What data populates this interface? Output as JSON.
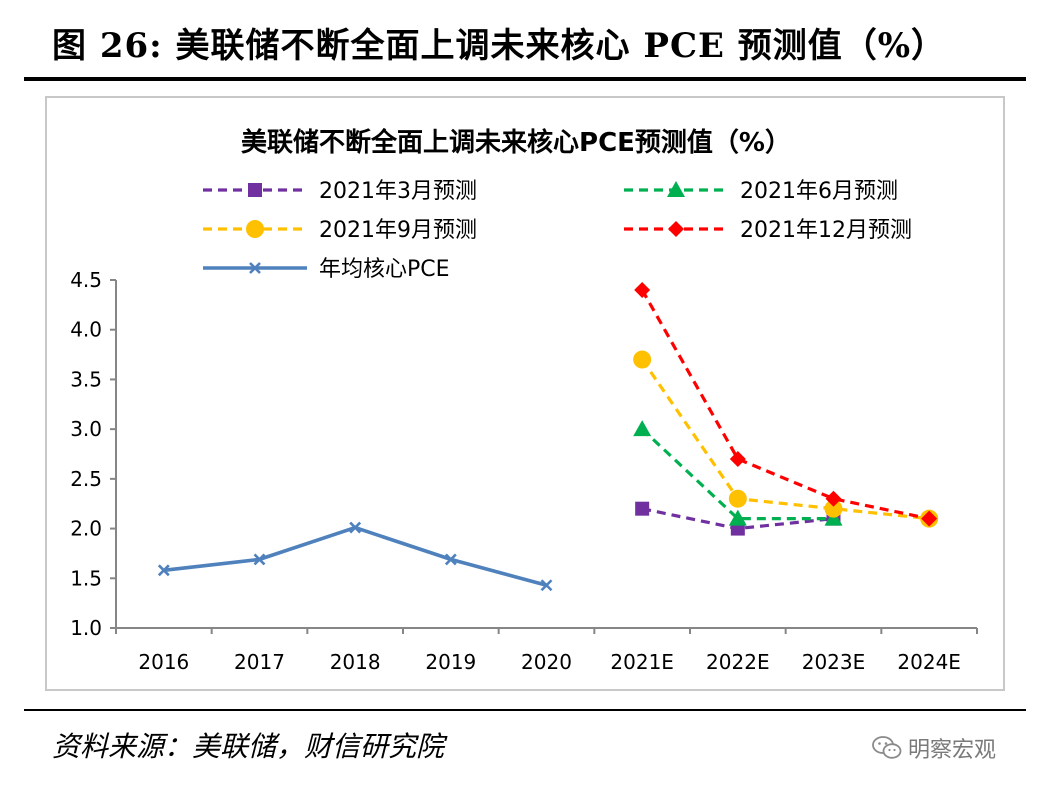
{
  "figure": {
    "title": "图 26: 美联储不断全面上调未来核心 PCE 预测值（%）",
    "source": "资料来源：美联储，财信研究院",
    "watermark": "明察宏观",
    "watermark_icon": "wechat-icon"
  },
  "chart_data": {
    "type": "line",
    "title": "美联储不断全面上调未来核心PCE预测值（%）",
    "xlabel": "",
    "ylabel": "",
    "categories": [
      "2016",
      "2017",
      "2018",
      "2019",
      "2020",
      "2021E",
      "2022E",
      "2023E",
      "2024E"
    ],
    "ylim": [
      1.0,
      4.5
    ],
    "yticks": [
      "1.0",
      "1.5",
      "2.0",
      "2.5",
      "3.0",
      "3.5",
      "4.0",
      "4.5"
    ],
    "grid": false,
    "legend_position": "top",
    "series": [
      {
        "name": "2021年3月预测",
        "color": "#7030a0",
        "marker": "square",
        "dash": true,
        "values": [
          null,
          null,
          null,
          null,
          null,
          2.2,
          2.0,
          2.1,
          null
        ]
      },
      {
        "name": "2021年6月预测",
        "color": "#00b050",
        "marker": "triangle",
        "dash": true,
        "values": [
          null,
          null,
          null,
          null,
          null,
          3.0,
          2.1,
          2.1,
          null
        ]
      },
      {
        "name": "2021年9月预测",
        "color": "#ffc000",
        "marker": "circle",
        "dash": true,
        "values": [
          null,
          null,
          null,
          null,
          null,
          3.7,
          2.3,
          2.2,
          2.1
        ]
      },
      {
        "name": "2021年12月预测",
        "color": "#ff0000",
        "marker": "diamond",
        "dash": true,
        "values": [
          null,
          null,
          null,
          null,
          null,
          4.4,
          2.7,
          2.3,
          2.1
        ]
      },
      {
        "name": "年均核心PCE",
        "color": "#4f81bd",
        "marker": "x",
        "dash": false,
        "values": [
          1.58,
          1.69,
          2.01,
          1.69,
          1.43,
          null,
          null,
          null,
          null
        ]
      }
    ]
  }
}
